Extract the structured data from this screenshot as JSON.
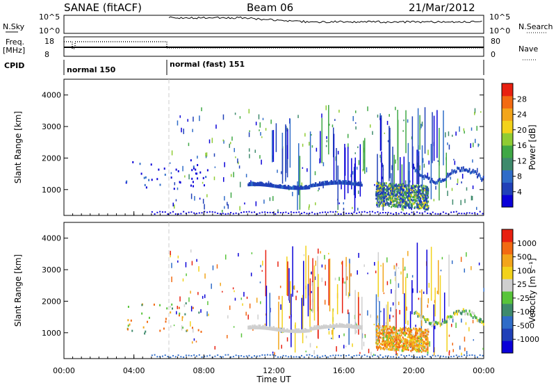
{
  "header": {
    "station": "SANAE (fitACF)",
    "beam": "Beam 06",
    "date": "21/Mar/2012"
  },
  "panels": {
    "nsky_label": "N.Sky",
    "nsky_ticks": [
      "10^5",
      "10^0"
    ],
    "nsearch_label": "N.Search",
    "nsearch_ticks": [
      "10^5",
      "10^0"
    ],
    "freq_label_1": "Freq.",
    "freq_label_2": "[MHz]",
    "freq_ticks": [
      "18",
      "8"
    ],
    "nave_label": "Nave",
    "nave_ticks": [
      "80",
      "0"
    ],
    "cpid_label": "CPID",
    "cpid_modes": [
      "normal 150",
      "normal (fast) 151"
    ]
  },
  "colors": {
    "power": [
      "#0a00d8",
      "#2040b8",
      "#2f6cc8",
      "#3e8a6c",
      "#3fa845",
      "#8fcc33",
      "#f2d21a",
      "#f2a51a",
      "#f26a12",
      "#e82010"
    ],
    "velocity": [
      "#0a00d8",
      "#2040b8",
      "#2f6cc8",
      "#3e8a6c",
      "#58c43a",
      "#cfcfcf",
      "#f2d21a",
      "#f2a51a",
      "#f26a12",
      "#e82010"
    ]
  },
  "chart_data": [
    {
      "type": "heatmap",
      "name": "power",
      "ylabel": "Slant Range [km]",
      "xlabel": "Time UT",
      "x_ticks": [
        "00:00",
        "04:00",
        "08:00",
        "12:00",
        "16:00",
        "20:00",
        "00:00"
      ],
      "y_ticks": [
        "1000",
        "2000",
        "3000",
        "4000"
      ],
      "ylim": [
        180,
        4500
      ],
      "xlim_hours": [
        0,
        24
      ],
      "mode_change_hour": 6,
      "colorbar_label": "Power [dB]",
      "colorbar_ticks": [
        "4",
        "8",
        "12",
        "16",
        "20",
        "24",
        "28"
      ],
      "features": [
        {
          "desc": "E-region band",
          "hours": [
            10.5,
            17.0
          ],
          "range_km": [
            1000,
            1200
          ],
          "level": 1
        },
        {
          "desc": "strong echoes",
          "hours": [
            17.8,
            20.8
          ],
          "range_km": [
            450,
            1200
          ],
          "level": 5
        },
        {
          "desc": "scattered echoes",
          "hours": [
            3.5,
            8.2
          ],
          "range_km": [
            900,
            1900
          ],
          "level": 1
        }
      ]
    },
    {
      "type": "heatmap",
      "name": "velocity",
      "ylabel": "Slant Range [km]",
      "xlabel": "Time UT",
      "x_ticks": [
        "00:00",
        "04:00",
        "08:00",
        "12:00",
        "16:00",
        "20:00",
        "00:00"
      ],
      "y_ticks": [
        "1000",
        "2000",
        "3000",
        "4000"
      ],
      "ylim": [
        180,
        4500
      ],
      "xlim_hours": [
        0,
        24
      ],
      "colorbar_label": "Velocity [m s⁻¹]",
      "colorbar_ticks": [
        "1000",
        "500",
        "100",
        "25",
        "-25",
        "-100",
        "-500",
        "-1000"
      ]
    }
  ],
  "axes": {
    "xlabel": "Time UT",
    "x_ticks": [
      "00:00",
      "04:00",
      "08:00",
      "12:00",
      "16:00",
      "20:00",
      "00:00"
    ],
    "y_ticks": [
      "1000",
      "2000",
      "3000",
      "4000"
    ],
    "ylabel": "Slant Range [km]",
    "power_cbar_label": "Power [dB]",
    "power_cbar_ticks": [
      "28",
      "24",
      "20",
      "16",
      "12",
      "8",
      "4"
    ],
    "vel_cbar_label": "Velocity [m s⁻¹]",
    "vel_cbar_ticks": [
      "1000",
      "500",
      "100",
      "25",
      "-25",
      "-100",
      "-500",
      "-1000"
    ]
  }
}
